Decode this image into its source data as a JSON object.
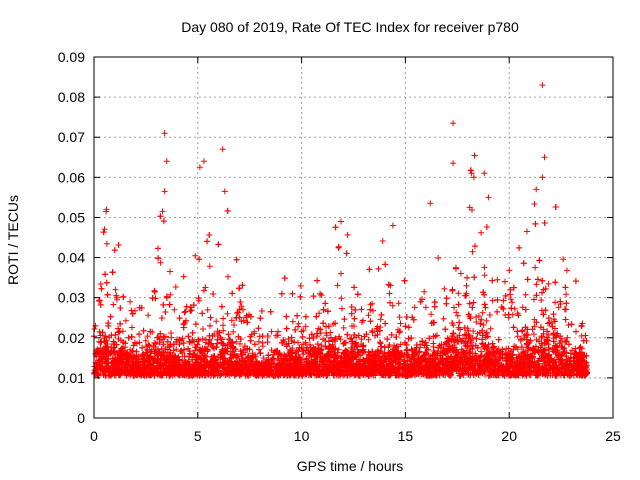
{
  "chart_data": {
    "type": "scatter",
    "title": "Day 080 of 2019, Rate Of TEC Index for receiver p780",
    "xlabel": "GPS time / hours",
    "ylabel": "ROTI / TECUs",
    "xlim": [
      0,
      25
    ],
    "ylim": [
      0,
      0.09
    ],
    "x_ticks": [
      0,
      5,
      10,
      15,
      20,
      25
    ],
    "x_tick_labels": [
      "0",
      "5",
      "10",
      "15",
      "20",
      "25"
    ],
    "y_ticks": [
      0,
      0.01,
      0.02,
      0.03,
      0.04,
      0.05,
      0.06,
      0.07,
      0.08,
      0.09
    ],
    "y_tick_labels": [
      "0",
      "0.01",
      "0.02",
      "0.03",
      "0.04",
      "0.05",
      "0.06",
      "0.07",
      "0.08",
      "0.09"
    ],
    "grid": true,
    "marker": "+",
    "color": "#ff0000",
    "data_x_range": [
      0,
      23.75
    ],
    "sample_count": 7000,
    "notable_points": [
      {
        "x": 21.6,
        "y": 0.083
      },
      {
        "x": 17.3,
        "y": 0.0735
      },
      {
        "x": 3.4,
        "y": 0.071
      },
      {
        "x": 6.2,
        "y": 0.067
      },
      {
        "x": 21.7,
        "y": 0.065
      },
      {
        "x": 5.3,
        "y": 0.064
      },
      {
        "x": 3.5,
        "y": 0.064
      },
      {
        "x": 17.3,
        "y": 0.0635
      },
      {
        "x": 18.8,
        "y": 0.061
      },
      {
        "x": 18.3,
        "y": 0.06
      },
      {
        "x": 5.1,
        "y": 0.0625
      },
      {
        "x": 21.6,
        "y": 0.06
      },
      {
        "x": 3.4,
        "y": 0.0565
      },
      {
        "x": 21.3,
        "y": 0.057
      },
      {
        "x": 6.3,
        "y": 0.0565
      },
      {
        "x": 19.0,
        "y": 0.055
      },
      {
        "x": 16.2,
        "y": 0.0535
      },
      {
        "x": 0.6,
        "y": 0.052
      },
      {
        "x": 18.1,
        "y": 0.0525
      },
      {
        "x": 3.3,
        "y": 0.0515
      },
      {
        "x": 11.9,
        "y": 0.049
      },
      {
        "x": 14.4,
        "y": 0.048
      }
    ]
  }
}
